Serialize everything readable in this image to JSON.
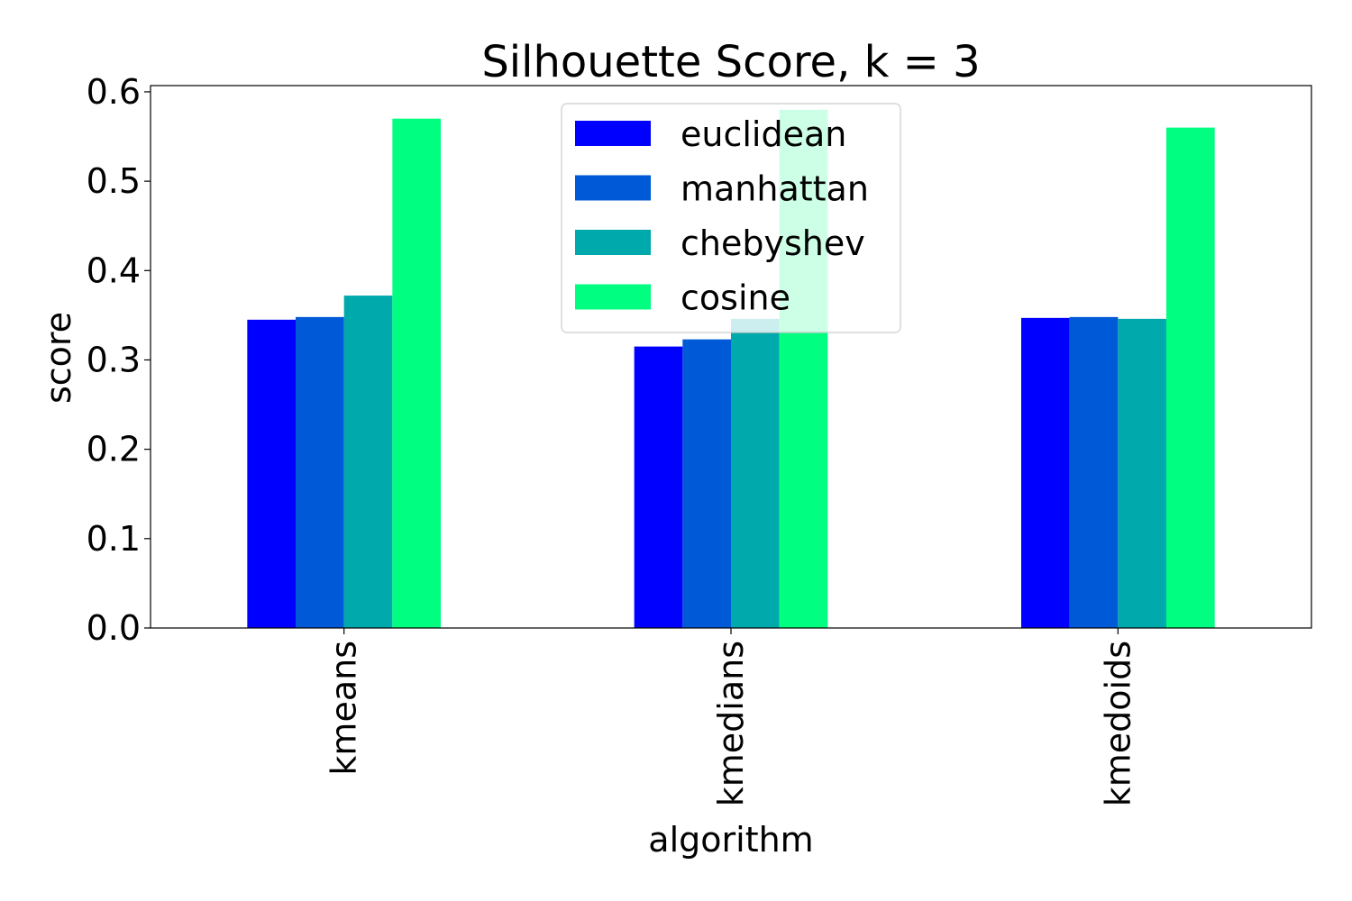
{
  "chart_data": {
    "type": "bar",
    "title": "Silhouette Score, k = 3",
    "xlabel": "algorithm",
    "ylabel": "score",
    "categories": [
      "kmeans",
      "kmedians",
      "kmedoids"
    ],
    "series": [
      {
        "name": "euclidean",
        "color": "#0000ff",
        "values": [
          0.345,
          0.315,
          0.347
        ]
      },
      {
        "name": "manhattan",
        "color": "#0059d6",
        "values": [
          0.348,
          0.323,
          0.348
        ]
      },
      {
        "name": "chebyshev",
        "color": "#00a9ab",
        "values": [
          0.372,
          0.346,
          0.346
        ]
      },
      {
        "name": "cosine",
        "color": "#00ff80",
        "values": [
          0.57,
          0.58,
          0.56
        ]
      }
    ],
    "ylim": [
      0,
      0.607
    ],
    "yticks": [
      "0.0",
      "0.1",
      "0.2",
      "0.3",
      "0.4",
      "0.5",
      "0.6"
    ],
    "ytick_values": [
      0,
      0.1,
      0.2,
      0.3,
      0.4,
      0.5,
      0.6
    ],
    "grid": false,
    "legend_position": "top-center"
  }
}
